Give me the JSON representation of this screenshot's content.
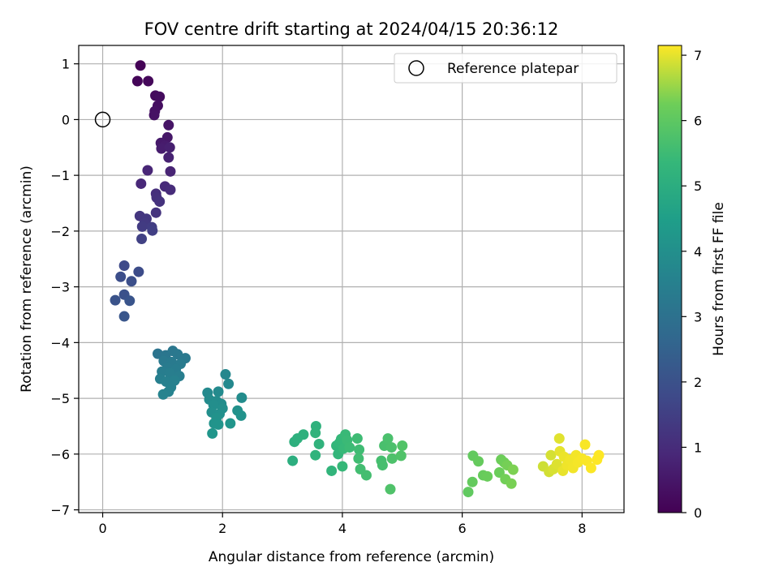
{
  "chart_data": {
    "type": "scatter",
    "title": "FOV centre drift starting at 2024/04/15 20:36:12",
    "xlabel": "Angular distance from reference (arcmin)",
    "ylabel": "Rotation from reference (arcmin)",
    "xlim": [
      -0.4,
      8.7
    ],
    "ylim": [
      -7.05,
      1.33
    ],
    "xticks": [
      0,
      2,
      4,
      6,
      8
    ],
    "yticks": [
      1,
      0,
      -1,
      -2,
      -3,
      -4,
      -5,
      -6,
      -7
    ],
    "x_tick_labels": [
      "0",
      "2",
      "4",
      "6",
      "8"
    ],
    "y_tick_labels": [
      "1",
      "0",
      "−1",
      "−2",
      "−3",
      "−4",
      "−5",
      "−6",
      "−7"
    ],
    "grid": true,
    "colormap": "viridis",
    "colorbar": {
      "label": "Hours from first FF file",
      "range": [
        0,
        7.15
      ],
      "ticks": [
        0,
        1,
        2,
        3,
        4,
        5,
        6,
        7
      ],
      "tick_labels": [
        "0",
        "1",
        "2",
        "3",
        "4",
        "5",
        "6",
        "7"
      ]
    },
    "legend": {
      "position": "top-right",
      "entries": [
        "Reference platepar"
      ]
    },
    "reference_point": {
      "x": 0,
      "y": 0,
      "label": "Reference platepar"
    },
    "points": [
      {
        "x": 0.63,
        "y": 0.97,
        "h": 0.05
      },
      {
        "x": 0.58,
        "y": 0.69,
        "h": 0.1
      },
      {
        "x": 0.76,
        "y": 0.69,
        "h": 0.15
      },
      {
        "x": 0.88,
        "y": 0.43,
        "h": 0.2
      },
      {
        "x": 0.95,
        "y": 0.41,
        "h": 0.25
      },
      {
        "x": 0.92,
        "y": 0.25,
        "h": 0.3
      },
      {
        "x": 0.87,
        "y": 0.15,
        "h": 0.35
      },
      {
        "x": 0.86,
        "y": 0.08,
        "h": 0.4
      },
      {
        "x": 1.1,
        "y": -0.1,
        "h": 0.45
      },
      {
        "x": 1.08,
        "y": -0.32,
        "h": 0.5
      },
      {
        "x": 0.97,
        "y": -0.42,
        "h": 0.55
      },
      {
        "x": 1.04,
        "y": -0.47,
        "h": 0.6
      },
      {
        "x": 0.98,
        "y": -0.52,
        "h": 0.65
      },
      {
        "x": 1.12,
        "y": -0.5,
        "h": 0.7
      },
      {
        "x": 1.1,
        "y": -0.68,
        "h": 0.75
      },
      {
        "x": 1.13,
        "y": -0.93,
        "h": 0.8
      },
      {
        "x": 0.75,
        "y": -0.91,
        "h": 0.85
      },
      {
        "x": 0.64,
        "y": -1.15,
        "h": 0.9
      },
      {
        "x": 1.04,
        "y": -1.2,
        "h": 0.95
      },
      {
        "x": 1.13,
        "y": -1.26,
        "h": 1.0
      },
      {
        "x": 0.89,
        "y": -1.33,
        "h": 1.05
      },
      {
        "x": 0.9,
        "y": -1.4,
        "h": 1.1
      },
      {
        "x": 0.95,
        "y": -1.47,
        "h": 1.15
      },
      {
        "x": 0.89,
        "y": -1.67,
        "h": 1.2
      },
      {
        "x": 0.62,
        "y": -1.73,
        "h": 1.25
      },
      {
        "x": 0.73,
        "y": -1.78,
        "h": 1.3
      },
      {
        "x": 0.7,
        "y": -1.86,
        "h": 1.35
      },
      {
        "x": 0.66,
        "y": -1.92,
        "h": 1.4
      },
      {
        "x": 0.82,
        "y": -1.93,
        "h": 1.45
      },
      {
        "x": 0.83,
        "y": -1.99,
        "h": 1.5
      },
      {
        "x": 0.65,
        "y": -2.14,
        "h": 1.55
      },
      {
        "x": 0.36,
        "y": -2.62,
        "h": 1.8
      },
      {
        "x": 0.6,
        "y": -2.73,
        "h": 1.85
      },
      {
        "x": 0.3,
        "y": -2.82,
        "h": 1.9
      },
      {
        "x": 0.48,
        "y": -2.9,
        "h": 1.95
      },
      {
        "x": 0.36,
        "y": -3.14,
        "h": 2.0
      },
      {
        "x": 0.21,
        "y": -3.24,
        "h": 2.05
      },
      {
        "x": 0.45,
        "y": -3.25,
        "h": 2.1
      },
      {
        "x": 0.36,
        "y": -3.53,
        "h": 2.15
      },
      {
        "x": 0.92,
        "y": -4.2,
        "h": 3.1
      },
      {
        "x": 1.05,
        "y": -4.23,
        "h": 3.15
      },
      {
        "x": 1.17,
        "y": -4.15,
        "h": 3.2
      },
      {
        "x": 1.25,
        "y": -4.21,
        "h": 3.22
      },
      {
        "x": 1.38,
        "y": -4.28,
        "h": 3.25
      },
      {
        "x": 1.02,
        "y": -4.33,
        "h": 3.28
      },
      {
        "x": 1.15,
        "y": -4.35,
        "h": 3.3
      },
      {
        "x": 1.3,
        "y": -4.38,
        "h": 3.33
      },
      {
        "x": 1.08,
        "y": -4.45,
        "h": 3.35
      },
      {
        "x": 1.22,
        "y": -4.48,
        "h": 3.38
      },
      {
        "x": 0.99,
        "y": -4.52,
        "h": 3.4
      },
      {
        "x": 1.12,
        "y": -4.55,
        "h": 3.43
      },
      {
        "x": 1.28,
        "y": -4.6,
        "h": 3.45
      },
      {
        "x": 0.96,
        "y": -4.65,
        "h": 3.48
      },
      {
        "x": 1.06,
        "y": -4.7,
        "h": 3.5
      },
      {
        "x": 1.2,
        "y": -4.68,
        "h": 3.53
      },
      {
        "x": 1.14,
        "y": -4.8,
        "h": 3.55
      },
      {
        "x": 1.1,
        "y": -4.88,
        "h": 3.58
      },
      {
        "x": 1.01,
        "y": -4.93,
        "h": 3.6
      },
      {
        "x": 2.05,
        "y": -4.57,
        "h": 3.75
      },
      {
        "x": 2.1,
        "y": -4.74,
        "h": 3.78
      },
      {
        "x": 1.75,
        "y": -4.9,
        "h": 3.8
      },
      {
        "x": 1.93,
        "y": -4.88,
        "h": 3.82
      },
      {
        "x": 1.78,
        "y": -5.02,
        "h": 3.85
      },
      {
        "x": 1.9,
        "y": -5.05,
        "h": 3.88
      },
      {
        "x": 2.32,
        "y": -4.99,
        "h": 3.9
      },
      {
        "x": 1.98,
        "y": -5.1,
        "h": 3.92
      },
      {
        "x": 1.85,
        "y": -5.12,
        "h": 3.95
      },
      {
        "x": 2.0,
        "y": -5.18,
        "h": 3.98
      },
      {
        "x": 1.82,
        "y": -5.25,
        "h": 4.0
      },
      {
        "x": 1.95,
        "y": -5.28,
        "h": 4.02
      },
      {
        "x": 2.25,
        "y": -5.22,
        "h": 4.05
      },
      {
        "x": 2.31,
        "y": -5.31,
        "h": 4.08
      },
      {
        "x": 1.9,
        "y": -5.35,
        "h": 4.1
      },
      {
        "x": 1.86,
        "y": -5.45,
        "h": 4.12
      },
      {
        "x": 1.93,
        "y": -5.47,
        "h": 4.15
      },
      {
        "x": 2.13,
        "y": -5.45,
        "h": 4.18
      },
      {
        "x": 1.83,
        "y": -5.63,
        "h": 4.2
      },
      {
        "x": 3.17,
        "y": -6.12,
        "h": 5.05
      },
      {
        "x": 3.2,
        "y": -5.78,
        "h": 5.08
      },
      {
        "x": 3.25,
        "y": -5.72,
        "h": 5.1
      },
      {
        "x": 3.35,
        "y": -5.65,
        "h": 5.12
      },
      {
        "x": 3.56,
        "y": -5.5,
        "h": 5.15
      },
      {
        "x": 3.55,
        "y": -5.62,
        "h": 5.18
      },
      {
        "x": 3.61,
        "y": -5.82,
        "h": 5.2
      },
      {
        "x": 3.55,
        "y": -6.02,
        "h": 5.22
      },
      {
        "x": 3.82,
        "y": -6.3,
        "h": 5.25
      },
      {
        "x": 3.9,
        "y": -5.85,
        "h": 5.28
      },
      {
        "x": 3.93,
        "y": -6.0,
        "h": 5.3
      },
      {
        "x": 3.95,
        "y": -5.8,
        "h": 5.32
      },
      {
        "x": 3.98,
        "y": -5.73,
        "h": 5.35
      },
      {
        "x": 4.0,
        "y": -6.22,
        "h": 5.38
      },
      {
        "x": 4.02,
        "y": -5.9,
        "h": 5.4
      },
      {
        "x": 4.05,
        "y": -5.65,
        "h": 5.42
      },
      {
        "x": 4.08,
        "y": -5.75,
        "h": 5.45
      },
      {
        "x": 4.12,
        "y": -5.88,
        "h": 5.48
      },
      {
        "x": 4.25,
        "y": -5.72,
        "h": 5.5
      },
      {
        "x": 4.28,
        "y": -5.92,
        "h": 5.52
      },
      {
        "x": 4.27,
        "y": -6.08,
        "h": 5.55
      },
      {
        "x": 4.3,
        "y": -6.27,
        "h": 5.58
      },
      {
        "x": 4.4,
        "y": -6.38,
        "h": 5.6
      },
      {
        "x": 4.65,
        "y": -6.12,
        "h": 5.62
      },
      {
        "x": 4.67,
        "y": -6.2,
        "h": 5.65
      },
      {
        "x": 4.7,
        "y": -5.85,
        "h": 5.68
      },
      {
        "x": 4.76,
        "y": -5.72,
        "h": 5.7
      },
      {
        "x": 4.82,
        "y": -5.88,
        "h": 5.72
      },
      {
        "x": 4.83,
        "y": -6.08,
        "h": 5.75
      },
      {
        "x": 4.8,
        "y": -6.63,
        "h": 5.78
      },
      {
        "x": 4.98,
        "y": -6.03,
        "h": 5.8
      },
      {
        "x": 5.0,
        "y": -5.85,
        "h": 5.82
      },
      {
        "x": 6.1,
        "y": -6.68,
        "h": 6.05
      },
      {
        "x": 6.18,
        "y": -6.03,
        "h": 6.08
      },
      {
        "x": 6.17,
        "y": -6.5,
        "h": 6.1
      },
      {
        "x": 6.27,
        "y": -6.13,
        "h": 6.12
      },
      {
        "x": 6.35,
        "y": -6.38,
        "h": 6.15
      },
      {
        "x": 6.42,
        "y": -6.4,
        "h": 6.18
      },
      {
        "x": 6.62,
        "y": -6.33,
        "h": 6.2
      },
      {
        "x": 6.65,
        "y": -6.1,
        "h": 6.22
      },
      {
        "x": 6.7,
        "y": -6.15,
        "h": 6.25
      },
      {
        "x": 6.72,
        "y": -6.45,
        "h": 6.28
      },
      {
        "x": 6.75,
        "y": -6.2,
        "h": 6.3
      },
      {
        "x": 6.82,
        "y": -6.53,
        "h": 6.32
      },
      {
        "x": 6.85,
        "y": -6.28,
        "h": 6.35
      },
      {
        "x": 7.35,
        "y": -6.22,
        "h": 6.85
      },
      {
        "x": 7.45,
        "y": -6.32,
        "h": 6.88
      },
      {
        "x": 7.48,
        "y": -6.02,
        "h": 6.9
      },
      {
        "x": 7.52,
        "y": -6.27,
        "h": 6.92
      },
      {
        "x": 7.58,
        "y": -6.18,
        "h": 6.95
      },
      {
        "x": 7.62,
        "y": -5.72,
        "h": 6.97
      },
      {
        "x": 7.63,
        "y": -5.95,
        "h": 7.0
      },
      {
        "x": 7.68,
        "y": -6.3,
        "h": 7.02
      },
      {
        "x": 7.7,
        "y": -6.05,
        "h": 7.04
      },
      {
        "x": 7.75,
        "y": -6.2,
        "h": 7.06
      },
      {
        "x": 7.8,
        "y": -6.1,
        "h": 7.07
      },
      {
        "x": 7.85,
        "y": -6.25,
        "h": 7.08
      },
      {
        "x": 7.9,
        "y": -6.02,
        "h": 7.09
      },
      {
        "x": 7.93,
        "y": -6.15,
        "h": 7.1
      },
      {
        "x": 8.0,
        "y": -6.08,
        "h": 7.11
      },
      {
        "x": 8.05,
        "y": -5.83,
        "h": 7.12
      },
      {
        "x": 8.08,
        "y": -6.12,
        "h": 7.13
      },
      {
        "x": 8.15,
        "y": -6.25,
        "h": 7.14
      },
      {
        "x": 8.25,
        "y": -6.1,
        "h": 7.15
      },
      {
        "x": 8.28,
        "y": -6.02,
        "h": 7.15
      }
    ]
  }
}
